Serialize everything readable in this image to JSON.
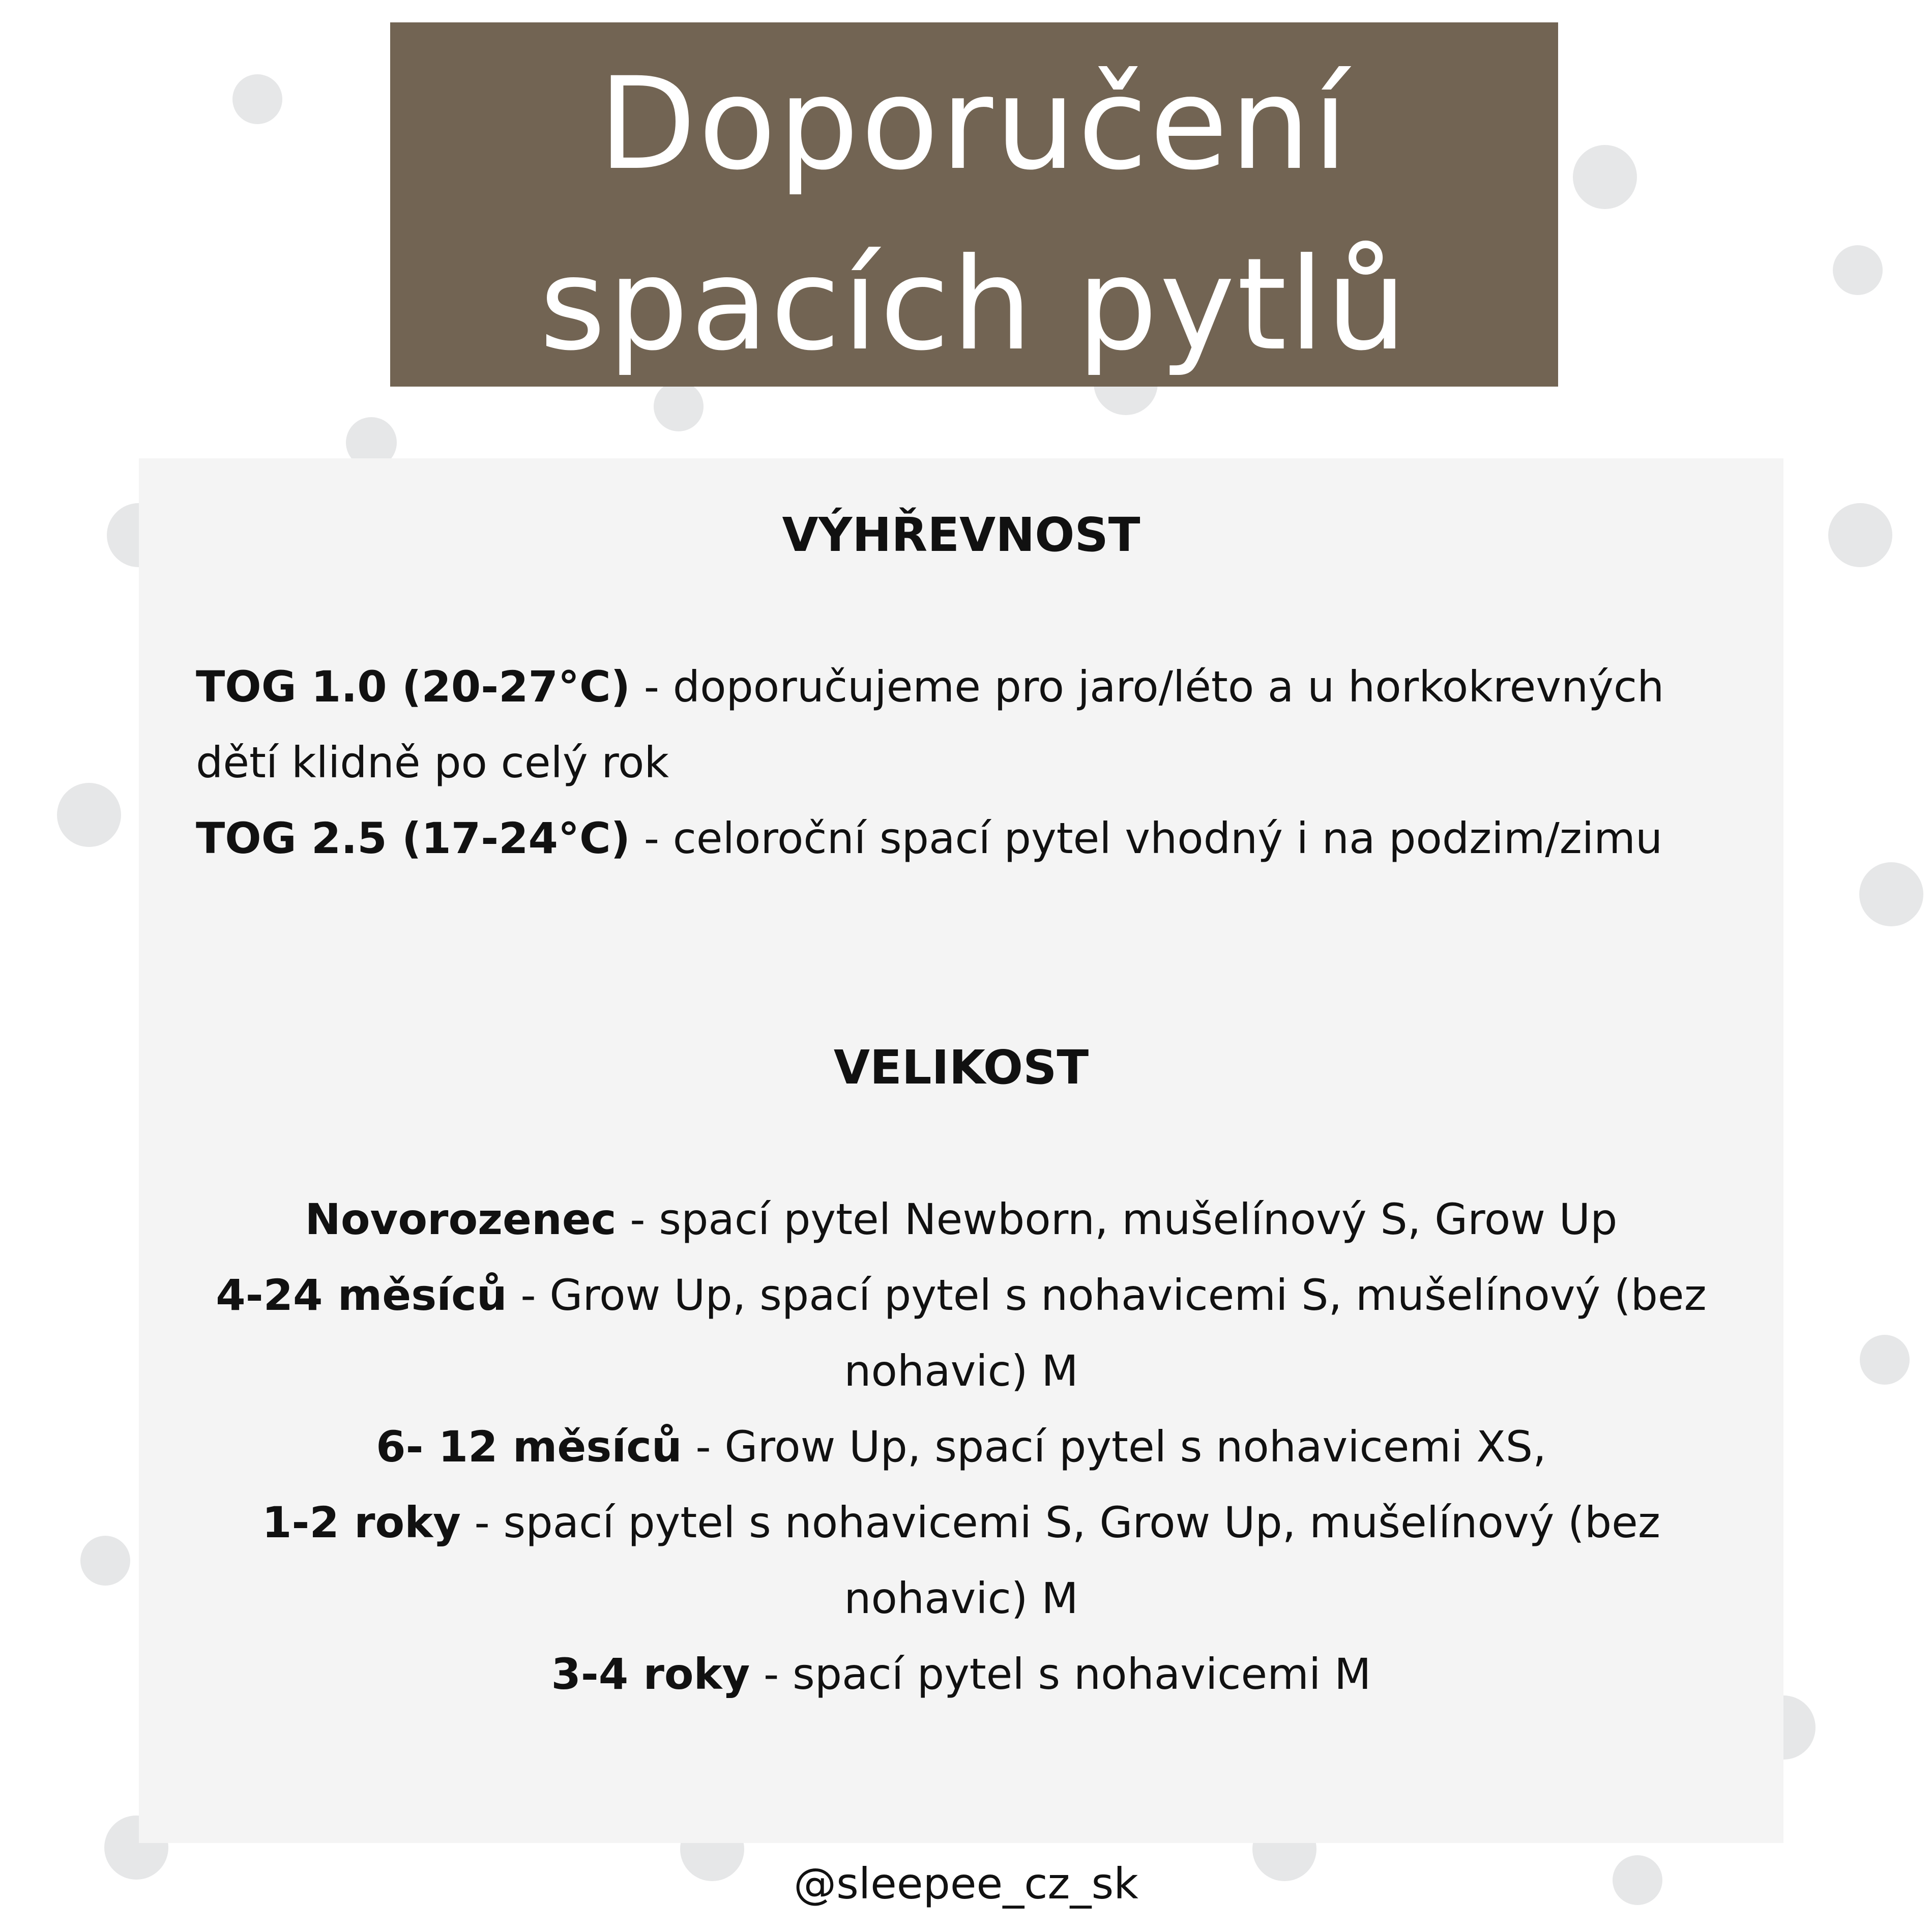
{
  "title": {
    "line1": "Doporučení",
    "line2": "spacích pytlů",
    "background": "#726453"
  },
  "warmth": {
    "heading": "VÝHŘEVNOST",
    "entries": [
      {
        "label": "TOG 1.0 (20-27°C)",
        "text": " - doporučujeme pro jaro/léto a u horkokrevných dětí klidně po celý rok"
      },
      {
        "label": "TOG 2.5 (17-24°C)",
        "text": " - celoroční spací pytel vhodný i na podzim/zimu"
      }
    ]
  },
  "size": {
    "heading": "VELIKOST",
    "entries": [
      {
        "label": "Novorozenec",
        "text": " - spací pytel Newborn, mušelínový S, Grow Up"
      },
      {
        "label": "4-24 měsíců",
        "text": " - Grow Up, spací pytel s nohavicemi S, mušelínový (bez nohavic) M"
      },
      {
        "label": "6- 12 měsíců",
        "text": " - Grow Up,  spací pytel s nohavicemi XS,"
      },
      {
        "label": "1-2 roky",
        "text": " - spací pytel s nohavicemi S, Grow Up, mušelínový (bez nohavic) M"
      },
      {
        "label": "3-4 roky",
        "text": " - spací pytel s nohavicemi M"
      }
    ]
  },
  "footer": {
    "handle": "@sleepee_cz_sk"
  },
  "colors": {
    "panel": "#f4f4f4",
    "dots": "#e6e7e8"
  }
}
